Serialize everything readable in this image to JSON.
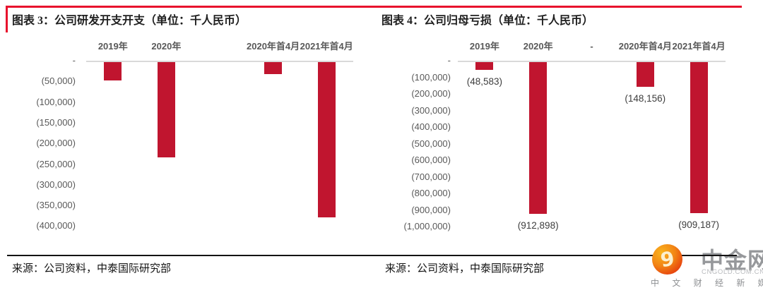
{
  "page": {
    "background": "#ffffff",
    "accent_red": "#e8112d",
    "bar_color": "#c0152f",
    "axis_line_color": "#d9d9d9",
    "separator_color": "#141414"
  },
  "chart_data": [
    {
      "type": "bar",
      "title": "图表 3：公司研发开支开支（单位：千人民币）",
      "source": "来源：公司资料，中泰国际研究部",
      "unit": "千人民币",
      "categories": [
        "2019年",
        "2020年",
        "",
        "2020年首4月",
        "2021年首4月"
      ],
      "values": [
        -45000,
        -230000,
        null,
        -29000,
        -375000
      ],
      "ylim": [
        -400000,
        0
      ],
      "ytick_step": 50000,
      "ytick_labels": [
        "-",
        "(50,000)",
        "(100,000)",
        "(150,000)",
        "(200,000)",
        "(250,000)",
        "(300,000)",
        "(350,000)",
        "(400,000)"
      ],
      "grid": false,
      "legend": false
    },
    {
      "type": "bar",
      "title": "图表 4：公司归母亏损（单位：千人民币）",
      "source": "来源：公司资料，中泰国际研究部",
      "unit": "千人民币",
      "categories": [
        "2019年",
        "2020年",
        "-",
        "2020年首4月",
        "2021年首4月"
      ],
      "values": [
        -48583,
        -912898,
        null,
        -148156,
        -909187
      ],
      "value_labels": [
        "(48,583)",
        "(912,898)",
        null,
        "(148,156)",
        "(909,187)"
      ],
      "ylim": [
        -1000000,
        0
      ],
      "ytick_step": 100000,
      "ytick_labels": [
        "-",
        "(100,000)",
        "(200,000)",
        "(300,000)",
        "(400,000)",
        "(500,000)",
        "(600,000)",
        "(700,000)",
        "(800,000)",
        "(900,000)",
        "(1,000,000)"
      ],
      "grid": false,
      "legend": false
    }
  ],
  "logo": {
    "brand": "中金网",
    "domain": "CNGOLD.COM.CN",
    "tagline": "中 文 财 经 新 媒 体",
    "icon_glyph": "9"
  }
}
